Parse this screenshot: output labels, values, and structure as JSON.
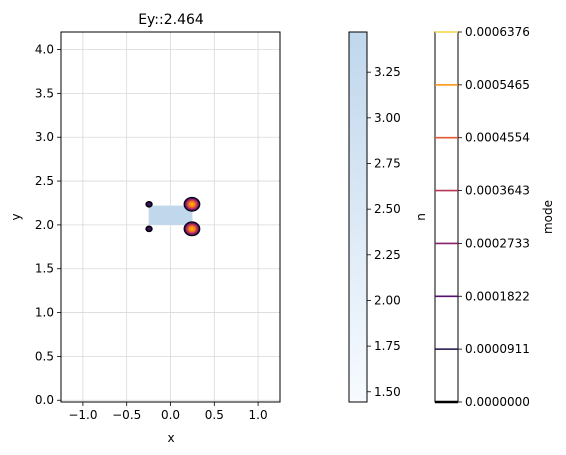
{
  "chart_data": {
    "type": "contour",
    "title": "Ey::2.464",
    "xlabel": "x",
    "ylabel": "y",
    "xlim": [
      -1.25,
      1.25
    ],
    "ylim": [
      -0.02,
      4.2
    ],
    "xticks": [
      -1.0,
      -0.5,
      0.0,
      0.5,
      1.0
    ],
    "xtick_labels": [
      "−1.0",
      "−0.5",
      "0.0",
      "0.5",
      "1.0"
    ],
    "yticks": [
      0.0,
      0.5,
      1.0,
      1.5,
      2.0,
      2.5,
      3.0,
      3.5,
      4.0
    ],
    "ytick_labels": [
      "0.0",
      "0.5",
      "1.0",
      "1.5",
      "2.0",
      "2.5",
      "3.0",
      "3.5",
      "4.0"
    ],
    "grid": true,
    "waveguide": {
      "x0": -0.25,
      "x1": 0.25,
      "y0": 2.0,
      "y1": 2.22,
      "n_value": 3.47,
      "color": "#c0d7ec"
    },
    "lobes": [
      {
        "cx": 0.245,
        "cy": 2.235,
        "peak": 0.00064
      },
      {
        "cx": 0.245,
        "cy": 1.955,
        "peak": 0.00064
      },
      {
        "cx": -0.245,
        "cy": 2.235,
        "peak": 0.0002
      },
      {
        "cx": -0.245,
        "cy": 1.955,
        "peak": 0.0002
      }
    ],
    "colorbar_n": {
      "label": "n",
      "min": 1.444,
      "max": 3.47,
      "ticks": [
        1.5,
        1.75,
        2.0,
        2.25,
        2.5,
        2.75,
        3.0,
        3.25
      ],
      "tick_labels": [
        "1.50",
        "1.75",
        "2.00",
        "2.25",
        "2.50",
        "2.75",
        "3.00",
        "3.25"
      ],
      "color_low": "#f7fbff",
      "color_high": "#c0d7ec"
    },
    "colorbar_mode": {
      "label": "mode",
      "levels": [
        0.0,
        9.11e-05,
        0.0001822,
        0.0002733,
        0.0003643,
        0.0004554,
        0.0005465,
        0.0006376
      ],
      "tick_labels": [
        "0.0000000",
        "0.0000911",
        "0.0001822",
        "0.0002733",
        "0.0003643",
        "0.0004554",
        "0.0005465",
        "0.0006376"
      ],
      "colors": [
        "#000004",
        "#1f0c48",
        "#550f6d",
        "#88226a",
        "#ba3655",
        "#e35933",
        "#f98e09",
        "#f6d746"
      ]
    }
  }
}
